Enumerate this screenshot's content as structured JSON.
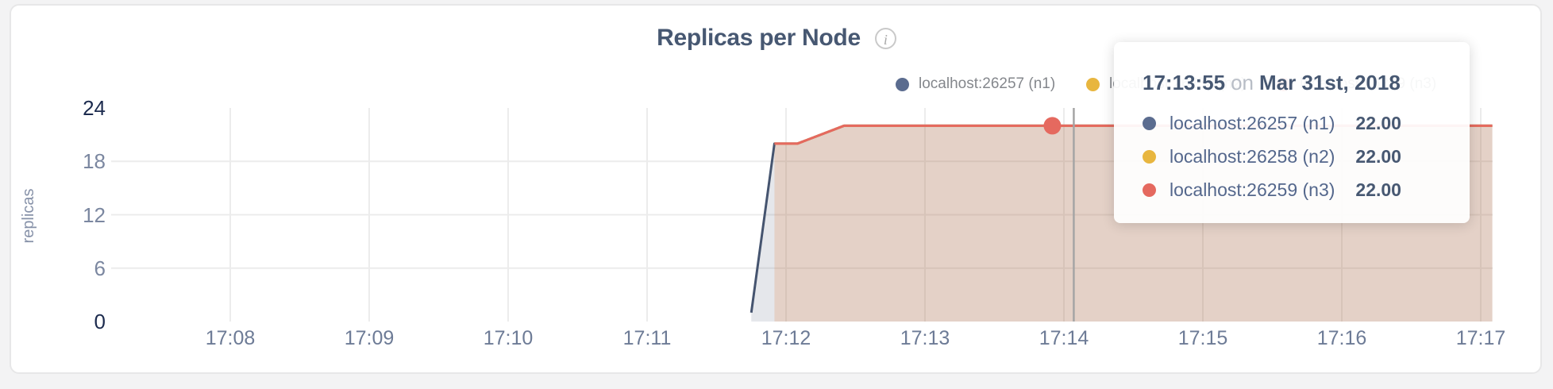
{
  "page": {
    "background": "#f3f3f4"
  },
  "chart": {
    "title": "Replicas per Node",
    "info_glyph": "i",
    "ylabel": "replicas"
  },
  "chart_data": {
    "type": "area",
    "title": "Replicas per Node",
    "xlabel": "",
    "ylabel": "replicas",
    "ylim": [
      0,
      24
    ],
    "yticks": [
      0,
      6,
      12,
      18,
      24
    ],
    "xticks": [
      "17:08",
      "17:09",
      "17:10",
      "17:11",
      "17:12",
      "17:13",
      "17:14",
      "17:15",
      "17:16",
      "17:17"
    ],
    "grid": true,
    "legend_position": "top-right",
    "series": [
      {
        "name": "localhost:26257 (n1)",
        "color": "#45546f",
        "fill": "rgba(69,84,111,0.14)",
        "points": [
          [
            "17:11:45",
            1
          ],
          [
            "17:11:55",
            20
          ],
          [
            "17:12:05",
            20
          ],
          [
            "17:12:25",
            22
          ],
          [
            "17:17:05",
            22
          ]
        ]
      },
      {
        "name": "localhost:26258 (n2)",
        "color": "#e8b63f",
        "fill": "rgba(232,182,63,0.10)",
        "points": [
          [
            "17:11:55",
            20
          ],
          [
            "17:12:05",
            20
          ],
          [
            "17:12:25",
            22
          ],
          [
            "17:17:05",
            22
          ]
        ]
      },
      {
        "name": "localhost:26259 (n3)",
        "color": "#e5695f",
        "fill": "rgba(229,105,95,0.14)",
        "points": [
          [
            "17:11:55",
            20
          ],
          [
            "17:12:05",
            20
          ],
          [
            "17:12:25",
            22
          ],
          [
            "17:17:05",
            22
          ]
        ]
      }
    ],
    "colors": {
      "grid": "#ececec",
      "guideline": "#a5a5a5",
      "axis_major": "#1c2b4e",
      "axis_minor": "#7b87a0",
      "x_labels": "#6d7b96"
    }
  },
  "legend": {
    "items": [
      {
        "label": "localhost:26257 (n1)",
        "color": "#5b6c8f"
      },
      {
        "label": "localhost:26258 (n2)",
        "color": "#e8b63f"
      },
      {
        "label": "localhost:26259 (n3)",
        "color": "#e5695f"
      }
    ]
  },
  "tooltip": {
    "time": "17:13:55",
    "on_word": "on",
    "date": "Mar 31st, 2018",
    "rows": [
      {
        "label": "localhost:26257 (n1)",
        "value": "22.00",
        "color": "#5b6c8f"
      },
      {
        "label": "localhost:26258 (n2)",
        "value": "22.00",
        "color": "#e8b63f"
      },
      {
        "label": "localhost:26259 (n3)",
        "value": "22.00",
        "color": "#e5695f"
      }
    ]
  },
  "hover": {
    "series": "localhost:26259 (n3)",
    "time": "17:13:55",
    "value": 22
  }
}
